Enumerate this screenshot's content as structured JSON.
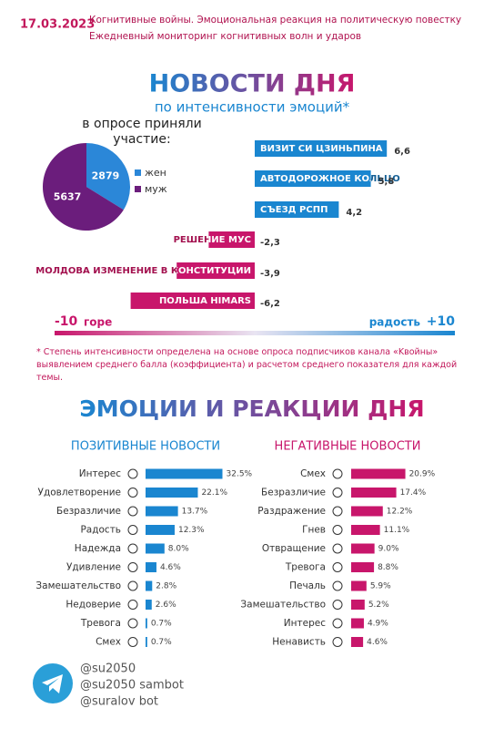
{
  "header": {
    "date": "17.03.2023",
    "line1": "Когнитивные войны. Эмоциональная реакция на политическую повестку",
    "line2": "Ежедневный мониторинг когнитивных волн и ударов"
  },
  "section1": {
    "title": "НОВОСТИ ДНЯ",
    "subtitle": "по интенсивности эмоций*",
    "footnote": "* Степень интенсивности определена на основе опроса подписчиков канала «Kвойны» выявлением среднего балла (коэффициента) и расчетом среднего показателя для каждой темы."
  },
  "section2": {
    "title": "ЭМОЦИИ И РЕАКЦИИ ДНЯ"
  },
  "footer": {
    "handles": [
      "@su2050",
      "@su2050 sambot",
      "@suralov bot"
    ]
  },
  "chart_data": [
    {
      "type": "pie",
      "title": "в опросе приняли участие:",
      "categories": [
        "жен",
        "муж"
      ],
      "values": [
        2879,
        5637
      ],
      "colors": [
        "#2b87d8",
        "#6b1d7c"
      ]
    },
    {
      "type": "bar",
      "orientation": "horizontal",
      "categories": [
        "ВИЗИТ СИ ЦЗИНЬПИНА",
        "АВТОДОРОЖНОЕ КОЛЬЦО",
        "СЪЕЗД РСПП",
        "РЕШЕНИЕ МУС",
        "МОЛДОВА ИЗМЕНЕНИЕ В КОНСТИТУЦИИ",
        "ПОЛЬША HIMARS"
      ],
      "values": [
        6.6,
        5.8,
        4.2,
        -2.3,
        -3.9,
        -6.2
      ],
      "value_labels": [
        "6,6",
        "5,8",
        "4,2",
        "-2,3",
        "-3,9",
        "-6,2"
      ],
      "colors": [
        "#1a86d0",
        "#1a86d0",
        "#1a86d0",
        "#c8166b",
        "#c8166b",
        "#c8166b"
      ],
      "xlim": [
        -10,
        10
      ],
      "xticks": [
        -10,
        {
          "value": 10,
          "label": "+10"
        }
      ],
      "x_low_label": "горе",
      "x_high_label": "радость"
    },
    {
      "type": "bar",
      "orientation": "horizontal",
      "title": "ПОЗИТИВНЫЕ НОВОСТИ",
      "categories": [
        "Интерес",
        "Удовлетворение",
        "Безразличие",
        "Радость",
        "Надежда",
        "Удивление",
        "Замешательство",
        "Недоверие",
        "Тревога",
        "Смех"
      ],
      "values": [
        32.5,
        22.1,
        13.7,
        12.3,
        8.0,
        4.6,
        2.8,
        2.6,
        0.7,
        0.7
      ],
      "value_labels": [
        "32.5%",
        "22.1%",
        "13.7%",
        "12.3%",
        "8.0%",
        "4.6%",
        "2.8%",
        "2.6%",
        "0.7%",
        "0.7%"
      ],
      "color": "#1a86d0"
    },
    {
      "type": "bar",
      "orientation": "horizontal",
      "title": "НЕГАТИВНЫЕ НОВОСТИ",
      "categories": [
        "Смех",
        "Безразличие",
        "Раздражение",
        "Гнев",
        "Отвращение",
        "Тревога",
        "Печаль",
        "Замешательство",
        "Интерес",
        "Ненависть"
      ],
      "values": [
        20.9,
        17.4,
        12.2,
        11.1,
        9.0,
        8.8,
        5.9,
        5.2,
        4.9,
        4.6
      ],
      "value_labels": [
        "20.9%",
        "17.4%",
        "12.2%",
        "11.1%",
        "9.0%",
        "8.8%",
        "5.9%",
        "5.2%",
        "4.9%",
        "4.6%"
      ],
      "color": "#c8166b"
    }
  ]
}
